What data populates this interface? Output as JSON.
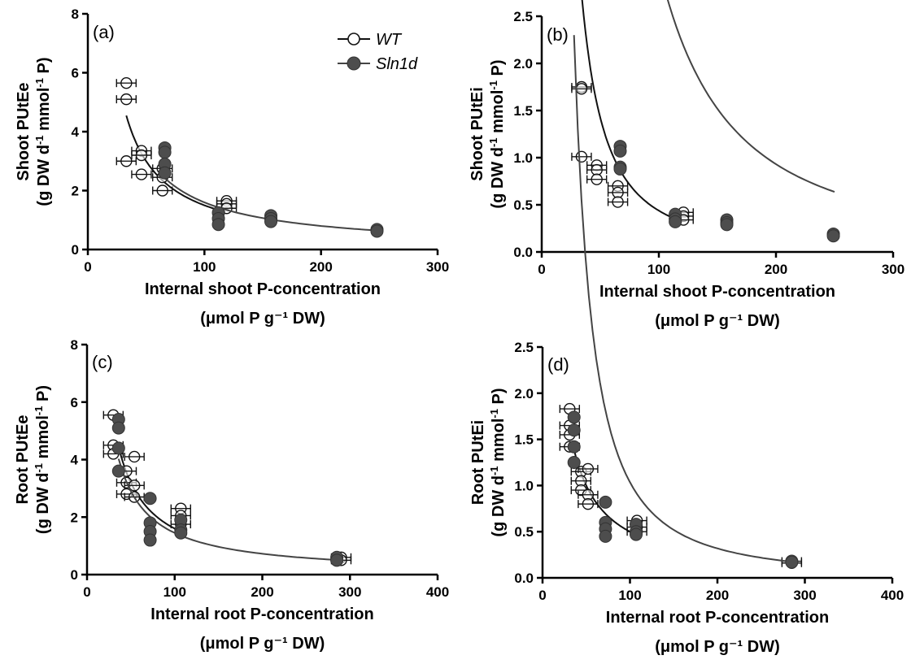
{
  "legend": {
    "wt_label": "WT",
    "sln_label": "Sln1d",
    "wt_marker": "open-circle-with-errorbar",
    "sln_marker": "filled-circle",
    "wt_fill": "#ffffff",
    "sln_fill": "#4d4d4d",
    "wt_line_color": "#111111",
    "sln_line_color": "#444444"
  },
  "chart_data": [
    {
      "type": "scatter",
      "panel_label": "(a)",
      "ylabel_line1": "Shoot PUtEe",
      "ylabel_line2_pre": "(g DW d",
      "ylabel_sup1": "-1",
      "ylabel_line2_mid": " mmol",
      "ylabel_sup2": "-1",
      "ylabel_line2_post": " P)",
      "xlabel_line1": "Internal shoot P-concentration",
      "xlabel_line2": "(μmol P g⁻¹ DW)",
      "xlim": [
        0,
        300
      ],
      "ylim": [
        0,
        8
      ],
      "xticks": [
        0,
        100,
        200,
        300
      ],
      "yticks": [
        0,
        2,
        4,
        6,
        8
      ],
      "ytick_labels": [
        "0",
        "2",
        "4",
        "6",
        "8"
      ],
      "series": [
        {
          "name": "WT",
          "points": [
            [
              33,
              5.65
            ],
            [
              33,
              5.1
            ],
            [
              33,
              3.0
            ],
            [
              46,
              3.35
            ],
            [
              46,
              3.2
            ],
            [
              46,
              2.55
            ],
            [
              64,
              2.75
            ],
            [
              64,
              2.45
            ],
            [
              64,
              2.0
            ],
            [
              119,
              1.65
            ],
            [
              119,
              1.55
            ],
            [
              119,
              1.4
            ]
          ],
          "curve": {
            "k": 150.0,
            "x_from": 33,
            "x_to": 118
          }
        },
        {
          "name": "Sln1d",
          "points": [
            [
              66,
              3.45
            ],
            [
              66,
              3.3
            ],
            [
              66,
              2.9
            ],
            [
              66,
              2.6
            ],
            [
              112,
              1.25
            ],
            [
              112,
              1.05
            ],
            [
              112,
              0.85
            ],
            [
              157,
              1.15
            ],
            [
              157,
              1.05
            ],
            [
              157,
              0.95
            ],
            [
              248,
              0.68
            ],
            [
              248,
              0.62
            ]
          ],
          "curve": {
            "k": 160.0,
            "x_from": 64,
            "x_to": 250
          }
        }
      ]
    },
    {
      "type": "scatter",
      "panel_label": "(b)",
      "ylabel_line1": "Shoot PUtEi",
      "ylabel_line2_pre": "(g DW d",
      "ylabel_sup1": "-1",
      "ylabel_line2_mid": " mmol",
      "ylabel_sup2": "-1",
      "ylabel_line2_post": " P)",
      "xlabel_line1": "Internal shoot P-concentration",
      "xlabel_line2": "(μmol P g⁻¹ DW)",
      "xlim": [
        0,
        300
      ],
      "ylim": [
        0,
        2.5
      ],
      "xticks": [
        0,
        100,
        200,
        300
      ],
      "yticks": [
        0,
        0.5,
        1.0,
        1.5,
        2.0,
        2.5
      ],
      "ytick_labels": [
        "0.0",
        "0.5",
        "1.0",
        "1.5",
        "2.0",
        "2.5"
      ],
      "series": [
        {
          "name": "WT",
          "points": [
            [
              34,
              1.75
            ],
            [
              34,
              1.73
            ],
            [
              34,
              1.01
            ],
            [
              47,
              0.92
            ],
            [
              47,
              0.87
            ],
            [
              47,
              0.77
            ],
            [
              65,
              0.7
            ],
            [
              65,
              0.63
            ],
            [
              65,
              0.53
            ],
            [
              121,
              0.42
            ],
            [
              121,
              0.38
            ],
            [
              121,
              0.34
            ]
          ],
          "curve": {
            "k": 1100.0,
            "x_from": 33,
            "x_to": 120
          }
        },
        {
          "name": "Sln1d",
          "points": [
            [
              67,
              1.12
            ],
            [
              67,
              1.07
            ],
            [
              67,
              0.9
            ],
            [
              67,
              0.88
            ],
            [
              114,
              0.4
            ],
            [
              114,
              0.35
            ],
            [
              114,
              0.32
            ],
            [
              158,
              0.34
            ],
            [
              158,
              0.31
            ],
            [
              158,
              0.29
            ],
            [
              249,
              0.19
            ],
            [
              249,
              0.17
            ]
          ],
          "curve": {
            "k": 7600.0,
            "x_from": 66,
            "x_to": 250
          }
        }
      ]
    },
    {
      "type": "scatter",
      "panel_label": "(c)",
      "ylabel_line1": "Root PUtEe",
      "ylabel_line2_pre": "(g DW d",
      "ylabel_sup1": "-1",
      "ylabel_line2_mid": " mmol",
      "ylabel_sup2": "-1",
      "ylabel_line2_post": " P)",
      "xlabel_line1": "Internal root P-concentration",
      "xlabel_line2": "(μmol P g⁻¹ DW)",
      "xlim": [
        0,
        400
      ],
      "ylim": [
        0,
        8
      ],
      "xticks": [
        0,
        100,
        200,
        300,
        400
      ],
      "yticks": [
        0,
        2,
        4,
        6,
        8
      ],
      "ytick_labels": [
        "0",
        "2",
        "4",
        "6",
        "8"
      ],
      "series": [
        {
          "name": "WT",
          "points": [
            [
              30,
              5.55
            ],
            [
              30,
              4.5
            ],
            [
              30,
              4.2
            ],
            [
              45,
              3.6
            ],
            [
              45,
              3.2
            ],
            [
              45,
              2.8
            ],
            [
              54,
              4.1
            ],
            [
              54,
              3.1
            ],
            [
              54,
              2.7
            ],
            [
              107,
              2.3
            ],
            [
              107,
              2.05
            ],
            [
              107,
              1.75
            ],
            [
              290,
              0.6
            ],
            [
              290,
              0.5
            ]
          ],
          "curve": {
            "k": 160.0,
            "x_from": 36,
            "x_to": 106
          }
        },
        {
          "name": "Sln1d",
          "points": [
            [
              36,
              5.4
            ],
            [
              36,
              5.1
            ],
            [
              36,
              4.4
            ],
            [
              36,
              3.6
            ],
            [
              72,
              2.65
            ],
            [
              72,
              1.8
            ],
            [
              72,
              1.5
            ],
            [
              72,
              1.2
            ],
            [
              107,
              1.9
            ],
            [
              107,
              1.55
            ],
            [
              107,
              1.45
            ],
            [
              285,
              0.6
            ],
            [
              285,
              0.5
            ]
          ],
          "curve": {
            "k": 145.0,
            "x_from": 36,
            "x_to": 290
          }
        }
      ]
    },
    {
      "type": "scatter",
      "panel_label": "(d)",
      "ylabel_line1": "Root PUtEi",
      "ylabel_line2_pre": "(g DW d",
      "ylabel_sup1": "-1",
      "ylabel_line2_mid": " mmol",
      "ylabel_sup2": "-1",
      "ylabel_line2_post": " P)",
      "xlabel_line1": "Internal root P-concentration",
      "xlabel_line2": "(μmol P g⁻¹ DW)",
      "xlim": [
        0,
        400
      ],
      "ylim": [
        0,
        2.5
      ],
      "xticks": [
        0,
        100,
        200,
        300,
        400
      ],
      "yticks": [
        0,
        0.5,
        1.0,
        1.5,
        2.0,
        2.5
      ],
      "ytick_labels": [
        "0.0",
        "0.5",
        "1.0",
        "1.5",
        "2.0",
        "2.5"
      ],
      "series": [
        {
          "name": "WT",
          "points": [
            [
              31,
              1.83
            ],
            [
              31,
              1.65
            ],
            [
              31,
              1.55
            ],
            [
              31,
              1.42
            ],
            [
              44,
              1.15
            ],
            [
              44,
              1.05
            ],
            [
              44,
              0.95
            ],
            [
              52,
              1.18
            ],
            [
              52,
              0.9
            ],
            [
              52,
              0.8
            ],
            [
              108,
              0.62
            ],
            [
              108,
              0.55
            ],
            [
              108,
              0.5
            ],
            [
              285,
              0.18
            ],
            [
              285,
              0.16
            ]
          ],
          "curve": {
            "k": 50.0,
            "x_from": 36,
            "x_to": 107
          }
        },
        {
          "name": "Sln1d",
          "points": [
            [
              36,
              1.74
            ],
            [
              36,
              1.6
            ],
            [
              36,
              1.42
            ],
            [
              36,
              1.25
            ],
            [
              72,
              0.82
            ],
            [
              72,
              0.6
            ],
            [
              72,
              0.53
            ],
            [
              72,
              0.45
            ],
            [
              107,
              0.58
            ],
            [
              107,
              0.5
            ],
            [
              107,
              0.47
            ],
            [
              285,
              0.18
            ],
            [
              285,
              0.17
            ]
          ],
          "curve": {
            "k": 2600.0,
            "x_from": 36,
            "x_to": 290
          }
        }
      ]
    }
  ]
}
